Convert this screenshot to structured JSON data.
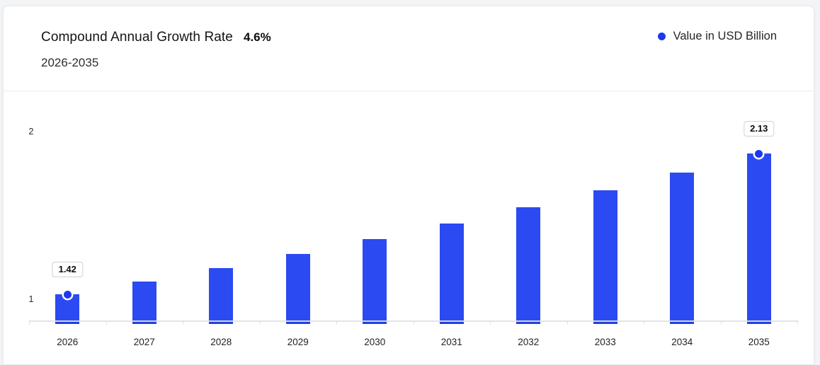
{
  "header": {
    "title": "Compound Annual Growth Rate",
    "cagr_value": "4.6%",
    "subtitle": "2026-2035",
    "legend": {
      "label": "Value in USD Billion",
      "marker_color": "#1c38f0"
    }
  },
  "chart_data": {
    "type": "bar",
    "title": "Compound Annual Growth Rate 4.6%",
    "subtitle": "2026-2035",
    "categories": [
      "2026",
      "2027",
      "2028",
      "2029",
      "2030",
      "2031",
      "2032",
      "2033",
      "2034",
      "2035"
    ],
    "series": [
      {
        "name": "Value in USD Billion",
        "values": [
          1.42,
          1.485,
          1.553,
          1.625,
          1.7,
          1.777,
          1.859,
          1.945,
          2.034,
          2.13
        ]
      }
    ],
    "xlabel": "",
    "ylabel": "",
    "y_ticks": [
      "1",
      "2"
    ],
    "grid": false,
    "legend_position": "top-right",
    "bar_color": "#2b4af2",
    "marker_color": "#1c38f0",
    "data_labels": [
      {
        "category": "2026",
        "text": "1.42"
      },
      {
        "category": "2035",
        "text": "2.13"
      }
    ]
  }
}
